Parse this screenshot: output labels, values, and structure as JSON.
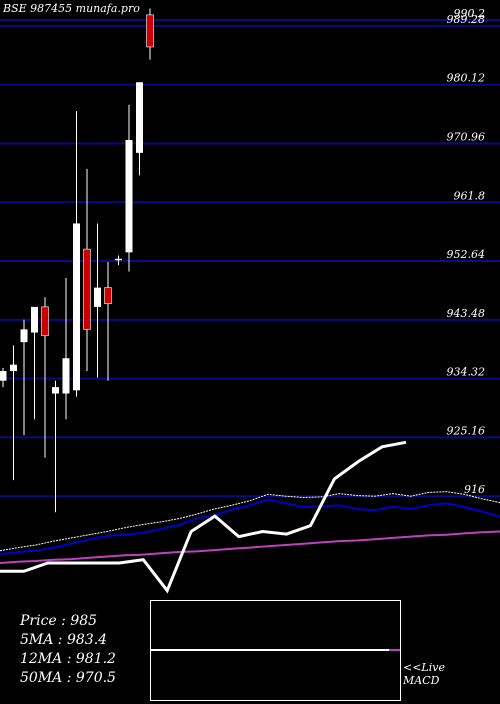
{
  "header": {
    "title": "BSE 987455 munafa.pro"
  },
  "stats": [
    {
      "label": "Price",
      "value": "985",
      "text": "Price   : 985"
    },
    {
      "label": "5MA",
      "value": "983.4",
      "text": "5MA : 983.4"
    },
    {
      "label": "12MA",
      "value": "981.2",
      "text": "12MA : 981.2"
    },
    {
      "label": "50MA",
      "value": "970.5",
      "text": "50MA : 970.5"
    }
  ],
  "macd": {
    "line1": "<<Live",
    "line2": "MACD"
  },
  "chart_data": {
    "type": "candlestick",
    "title": "BSE 987455 munafa.pro",
    "ylim": [
      906.84,
      990.2
    ],
    "y_grid_values": [
      990.2,
      989.28,
      980.12,
      970.96,
      961.8,
      952.64,
      943.48,
      934.32,
      925.16,
      916.0
    ],
    "y_tick_labels": [
      "990.2",
      "989.28",
      "980.12",
      "970.96",
      "961.8",
      "952.64",
      "943.48",
      "934.32",
      "925.16",
      "916"
    ],
    "grid": true,
    "colors": {
      "up": "#ffffff",
      "down": "#cc0000",
      "grid": "#0a0a82",
      "ma_white": "#ffffff",
      "ma_blue": "#0000cc",
      "ma_magenta": "#c040c0"
    },
    "candles": [
      {
        "o": 934.0,
        "h": 936.0,
        "l": 933.0,
        "c": 935.5
      },
      {
        "o": 935.5,
        "h": 939.5,
        "l": 918.5,
        "c": 936.5
      },
      {
        "o": 940.0,
        "h": 943.5,
        "l": 925.5,
        "c": 942.0
      },
      {
        "o": 941.5,
        "h": 945.0,
        "l": 928.0,
        "c": 945.5
      },
      {
        "o": 945.5,
        "h": 947.0,
        "l": 922.0,
        "c": 941.0
      },
      {
        "o": 932.0,
        "h": 934.0,
        "l": 913.5,
        "c": 933.0
      },
      {
        "o": 932.0,
        "h": 950.0,
        "l": 928.0,
        "c": 937.5
      },
      {
        "o": 932.5,
        "h": 976.0,
        "l": 931.5,
        "c": 958.5
      },
      {
        "o": 954.5,
        "h": 967.0,
        "l": 935.5,
        "c": 942.0
      },
      {
        "o": 945.5,
        "h": 958.5,
        "l": 934.5,
        "c": 948.5
      },
      {
        "o": 948.5,
        "h": 952.5,
        "l": 934.0,
        "c": 946.0
      },
      {
        "o": 953.0,
        "h": 953.5,
        "l": 952.0,
        "c": 953.0
      },
      {
        "o": 954.0,
        "h": 977.0,
        "l": 951.0,
        "c": 971.5
      },
      {
        "o": 969.5,
        "h": 980.5,
        "l": 966.0,
        "c": 980.5
      },
      {
        "o": 991.0,
        "h": 992.0,
        "l": 984.0,
        "c": 986.0
      }
    ],
    "moving_averages": [
      {
        "color": "ma_white",
        "values": [
          907.5,
          908.0,
          908.4,
          909.0,
          909.5,
          910.0,
          910.5,
          911.1,
          911.6,
          912.0,
          912.5,
          913.2,
          914.0,
          914.6,
          915.3,
          916.3,
          916.0,
          915.8,
          915.9,
          916.4,
          916.1,
          916.0,
          916.4,
          916.0,
          916.6,
          916.7,
          916.3,
          915.6,
          915.0
        ]
      },
      {
        "color": "ma_blue",
        "values": [
          907.0,
          907.3,
          907.5,
          908.0,
          908.6,
          909.3,
          909.8,
          910.0,
          910.3,
          910.9,
          911.5,
          912.5,
          913.0,
          913.9,
          914.6,
          915.5,
          914.9,
          914.3,
          914.4,
          914.6,
          914.0,
          913.8,
          914.4,
          914.0,
          914.6,
          914.9,
          914.3,
          913.6,
          912.8
        ]
      },
      {
        "color": "ma_magenta",
        "values": [
          905.6,
          905.8,
          905.9,
          906.1,
          906.2,
          906.4,
          906.6,
          906.8,
          906.9,
          907.1,
          907.3,
          907.4,
          907.6,
          907.8,
          908.0,
          908.2,
          908.4,
          908.6,
          908.8,
          909.0,
          909.1,
          909.3,
          909.5,
          909.7,
          909.9,
          910.0,
          910.2,
          910.4,
          910.5
        ]
      }
    ],
    "lower_line": [
      904.3,
      904.3,
      905.6,
      905.6,
      905.6,
      905.6,
      906.1,
      901.3,
      910.5,
      912.9,
      909.7,
      910.5,
      910.1,
      911.4,
      918.7,
      921.4,
      923.7,
      924.4
    ]
  }
}
